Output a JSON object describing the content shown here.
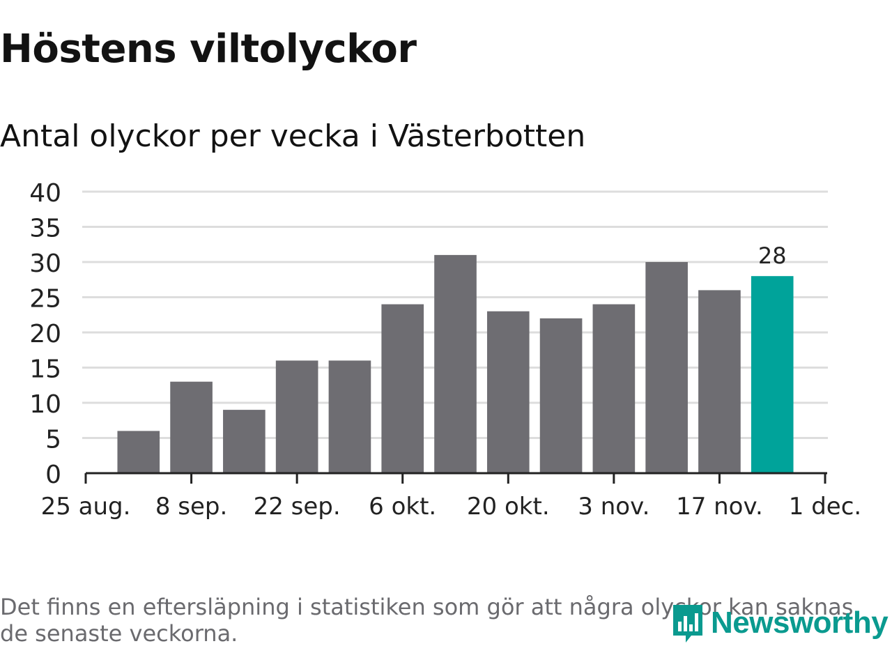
{
  "title": "Höstens viltolyckor",
  "subtitle": "Antal olyckor per vecka i Västerbotten",
  "footnote": "Det finns en eftersläpning i statistiken som gör att några olyckor kan saknas de senaste veckorna.",
  "brand": {
    "name": "Newsworthy",
    "color": "#0a9a8f"
  },
  "colors": {
    "bar": "#6e6d72",
    "highlight": "#00a39a",
    "grid": "#dddddd",
    "axis": "#222222",
    "text": "#222222"
  },
  "chart_data": {
    "type": "bar",
    "title": "Höstens viltolyckor",
    "subtitle": "Antal olyckor per vecka i Västerbotten",
    "xlabel": "",
    "ylabel": "",
    "ylim": [
      0,
      40
    ],
    "yticks": [
      0,
      5,
      10,
      15,
      20,
      25,
      30,
      35,
      40
    ],
    "x_tick_labels": [
      "25 aug.",
      "8 sep.",
      "22 sep.",
      "6 okt.",
      "20 okt.",
      "3 nov.",
      "17 nov.",
      "1 dec."
    ],
    "x_tick_count": 8,
    "bar_count": 13,
    "values": [
      6,
      13,
      9,
      16,
      16,
      24,
      31,
      23,
      22,
      24,
      30,
      26,
      28
    ],
    "highlight_index": 12,
    "highlight_label": "28",
    "grid": true
  }
}
